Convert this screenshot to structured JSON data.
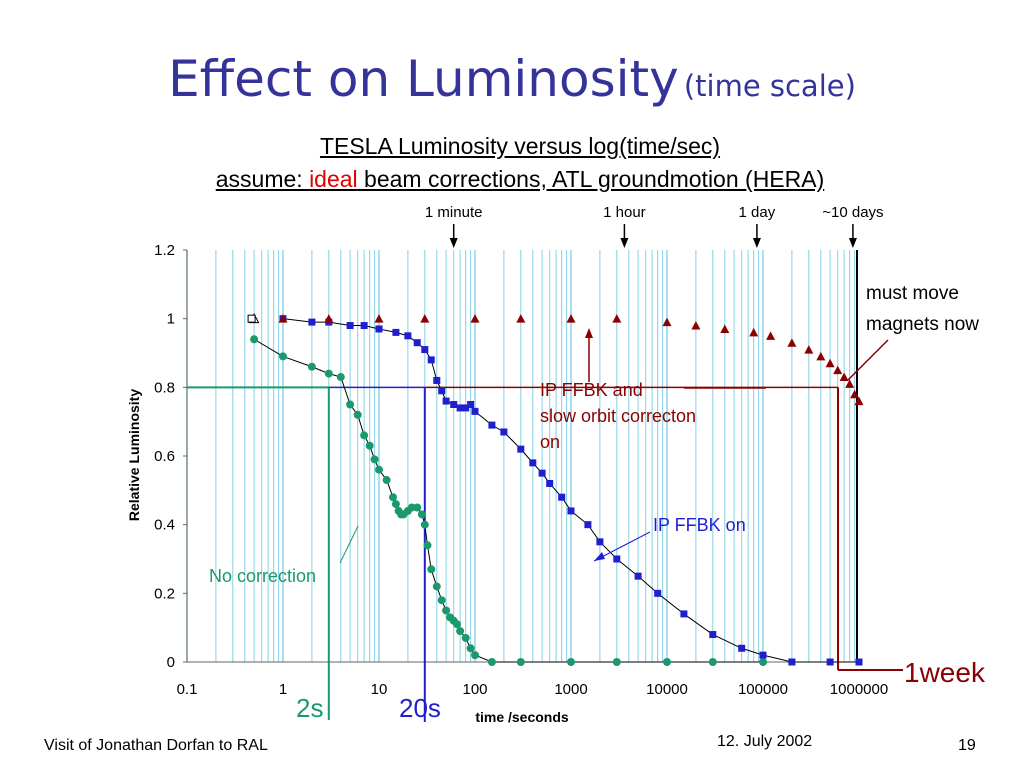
{
  "slide": {
    "title_main": "Effect on Luminosity",
    "title_sub": "(time scale)",
    "subtitle_line1": "TESLA Luminosity versus log(time/sec)",
    "subtitle_line2_pre": "assume: ",
    "subtitle_line2_em": "ideal",
    "subtitle_line2_post": " beam corrections, ATL groundmotion (HERA)",
    "footer_left": "Visit of Jonathan Dorfan to RAL",
    "footer_date": "12. July 2002",
    "footer_page": "19"
  },
  "colors": {
    "title": "#333399",
    "no_correction": "#1a9a6a",
    "ip_ffbk_on": "#1f1fd0",
    "ip_ffbk_orbit": "#8b0000",
    "grid": "#87cfe3",
    "emphasis_red": "#e00000"
  },
  "chart_data": {
    "type": "scatter",
    "xscale": "log",
    "xlim": [
      0.1,
      1000000
    ],
    "ylim": [
      0,
      1.2
    ],
    "xlabel": "time /seconds",
    "ylabel": "Relative Luminosity",
    "x_ticks": [
      "0.1",
      "1",
      "10",
      "100",
      "1000",
      "10000",
      "100000",
      "1000000"
    ],
    "y_ticks": [
      "0",
      "0.2",
      "0.4",
      "0.6",
      "0.8",
      "1",
      "1.2"
    ],
    "grid": "vertical minor lines",
    "time_markers": [
      {
        "label": "1 minute",
        "x": 60
      },
      {
        "label": "1 hour",
        "x": 3600
      },
      {
        "label": "1 day",
        "x": 86400
      },
      {
        "label": "~10 days",
        "x": 864000
      }
    ],
    "series": [
      {
        "label": "No correction",
        "marker": "circle",
        "points": [
          [
            0.5,
            0.94
          ],
          [
            1,
            0.89
          ],
          [
            2,
            0.86
          ],
          [
            3,
            0.84
          ],
          [
            4,
            0.83
          ],
          [
            5,
            0.75
          ],
          [
            6,
            0.72
          ],
          [
            7,
            0.66
          ],
          [
            8,
            0.63
          ],
          [
            9,
            0.59
          ],
          [
            10,
            0.56
          ],
          [
            12,
            0.53
          ],
          [
            14,
            0.48
          ],
          [
            15,
            0.46
          ],
          [
            16,
            0.44
          ],
          [
            17,
            0.43
          ],
          [
            18,
            0.43
          ],
          [
            20,
            0.44
          ],
          [
            22,
            0.45
          ],
          [
            25,
            0.45
          ],
          [
            28,
            0.43
          ],
          [
            30,
            0.4
          ],
          [
            32,
            0.34
          ],
          [
            35,
            0.27
          ],
          [
            40,
            0.22
          ],
          [
            45,
            0.18
          ],
          [
            50,
            0.15
          ],
          [
            55,
            0.13
          ],
          [
            60,
            0.12
          ],
          [
            65,
            0.11
          ],
          [
            70,
            0.09
          ],
          [
            80,
            0.07
          ],
          [
            90,
            0.04
          ],
          [
            100,
            0.02
          ],
          [
            150,
            0.0
          ],
          [
            300,
            0.0
          ],
          [
            1000,
            0.0
          ],
          [
            3000,
            0.0
          ],
          [
            10000,
            0.0
          ],
          [
            30000,
            0.0
          ],
          [
            100000,
            0.0
          ]
        ]
      },
      {
        "label": "IP FFBK on",
        "marker": "square",
        "points": [
          [
            1,
            1.0
          ],
          [
            2,
            0.99
          ],
          [
            3,
            0.99
          ],
          [
            5,
            0.98
          ],
          [
            7,
            0.98
          ],
          [
            10,
            0.97
          ],
          [
            15,
            0.96
          ],
          [
            20,
            0.95
          ],
          [
            25,
            0.93
          ],
          [
            30,
            0.91
          ],
          [
            35,
            0.88
          ],
          [
            40,
            0.82
          ],
          [
            45,
            0.79
          ],
          [
            50,
            0.76
          ],
          [
            60,
            0.75
          ],
          [
            70,
            0.74
          ],
          [
            80,
            0.74
          ],
          [
            90,
            0.75
          ],
          [
            100,
            0.73
          ],
          [
            150,
            0.69
          ],
          [
            200,
            0.67
          ],
          [
            300,
            0.62
          ],
          [
            400,
            0.58
          ],
          [
            500,
            0.55
          ],
          [
            600,
            0.52
          ],
          [
            800,
            0.48
          ],
          [
            1000,
            0.44
          ],
          [
            1500,
            0.4
          ],
          [
            2000,
            0.35
          ],
          [
            3000,
            0.3
          ],
          [
            5000,
            0.25
          ],
          [
            8000,
            0.2
          ],
          [
            15000,
            0.14
          ],
          [
            30000,
            0.08
          ],
          [
            60000,
            0.04
          ],
          [
            100000,
            0.02
          ],
          [
            200000,
            0.0
          ],
          [
            500000,
            0.0
          ],
          [
            1000000,
            0.0
          ]
        ]
      },
      {
        "label": "IP FFBK and slow orbit correcton on",
        "marker": "triangle",
        "points": [
          [
            1,
            1.0
          ],
          [
            3,
            1.0
          ],
          [
            10,
            1.0
          ],
          [
            30,
            1.0
          ],
          [
            100,
            1.0
          ],
          [
            300,
            1.0
          ],
          [
            1000,
            1.0
          ],
          [
            3000,
            1.0
          ],
          [
            10000,
            0.99
          ],
          [
            20000,
            0.98
          ],
          [
            40000,
            0.97
          ],
          [
            80000,
            0.96
          ],
          [
            120000,
            0.95
          ],
          [
            200000,
            0.93
          ],
          [
            300000,
            0.91
          ],
          [
            400000,
            0.89
          ],
          [
            500000,
            0.87
          ],
          [
            600000,
            0.85
          ],
          [
            700000,
            0.83
          ],
          [
            800000,
            0.81
          ],
          [
            900000,
            0.78
          ],
          [
            1000000,
            0.76
          ]
        ]
      }
    ],
    "annotations": [
      {
        "text": "No correction",
        "color_key": "no_correction"
      },
      {
        "text": "IP FFBK on",
        "color_key": "ip_ffbk_on"
      },
      {
        "lines": [
          "IP FFBK and",
          "slow orbit correcton",
          "on"
        ],
        "color_key": "ip_ffbk_orbit"
      },
      {
        "lines": [
          "must move",
          "magnets now"
        ],
        "color_key": "text"
      },
      {
        "text": "2s",
        "color_key": "no_correction"
      },
      {
        "text": "20s",
        "color_key": "ip_ffbk_on"
      },
      {
        "text": "1week",
        "color_key": "ip_ffbk_orbit"
      }
    ]
  }
}
